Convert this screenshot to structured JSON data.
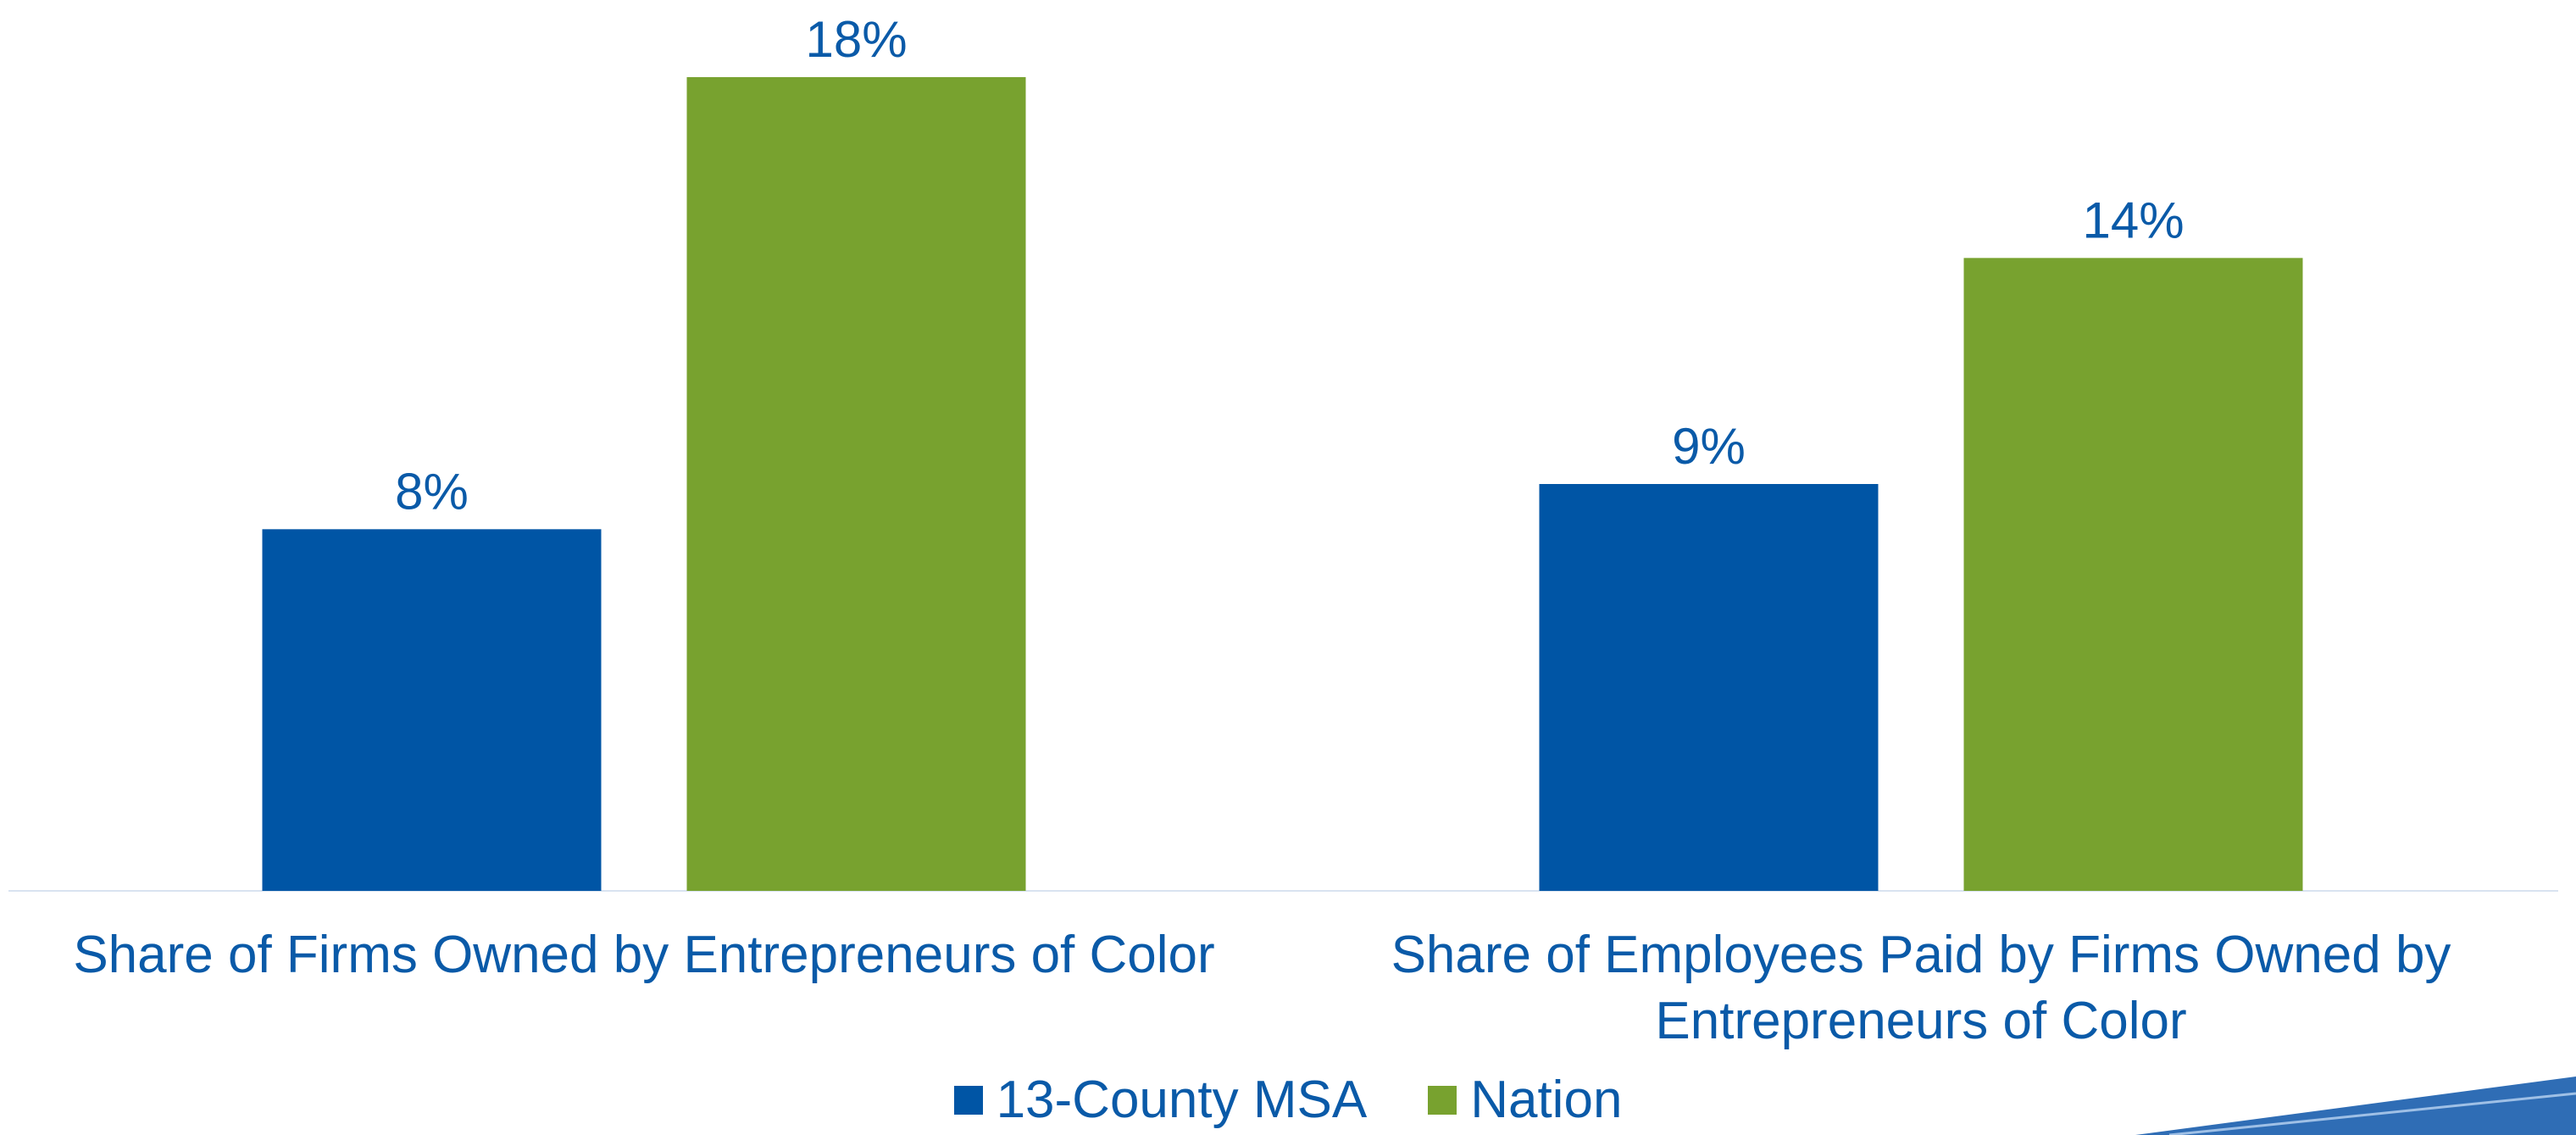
{
  "chart_data": {
    "type": "bar",
    "categories": [
      "Share of Firms Owned by Entrepreneurs of Color",
      "Share of Employees Paid by Firms Owned by Entrepreneurs of Color"
    ],
    "series": [
      {
        "name": "13-County MSA",
        "color": "#0055a5",
        "values": [
          8,
          9
        ],
        "value_labels": [
          "8%",
          "9%"
        ]
      },
      {
        "name": "Nation",
        "color": "#78a22f",
        "values": [
          18,
          14
        ],
        "value_labels": [
          "18%",
          "14%"
        ]
      }
    ],
    "legend": "bottom"
  }
}
